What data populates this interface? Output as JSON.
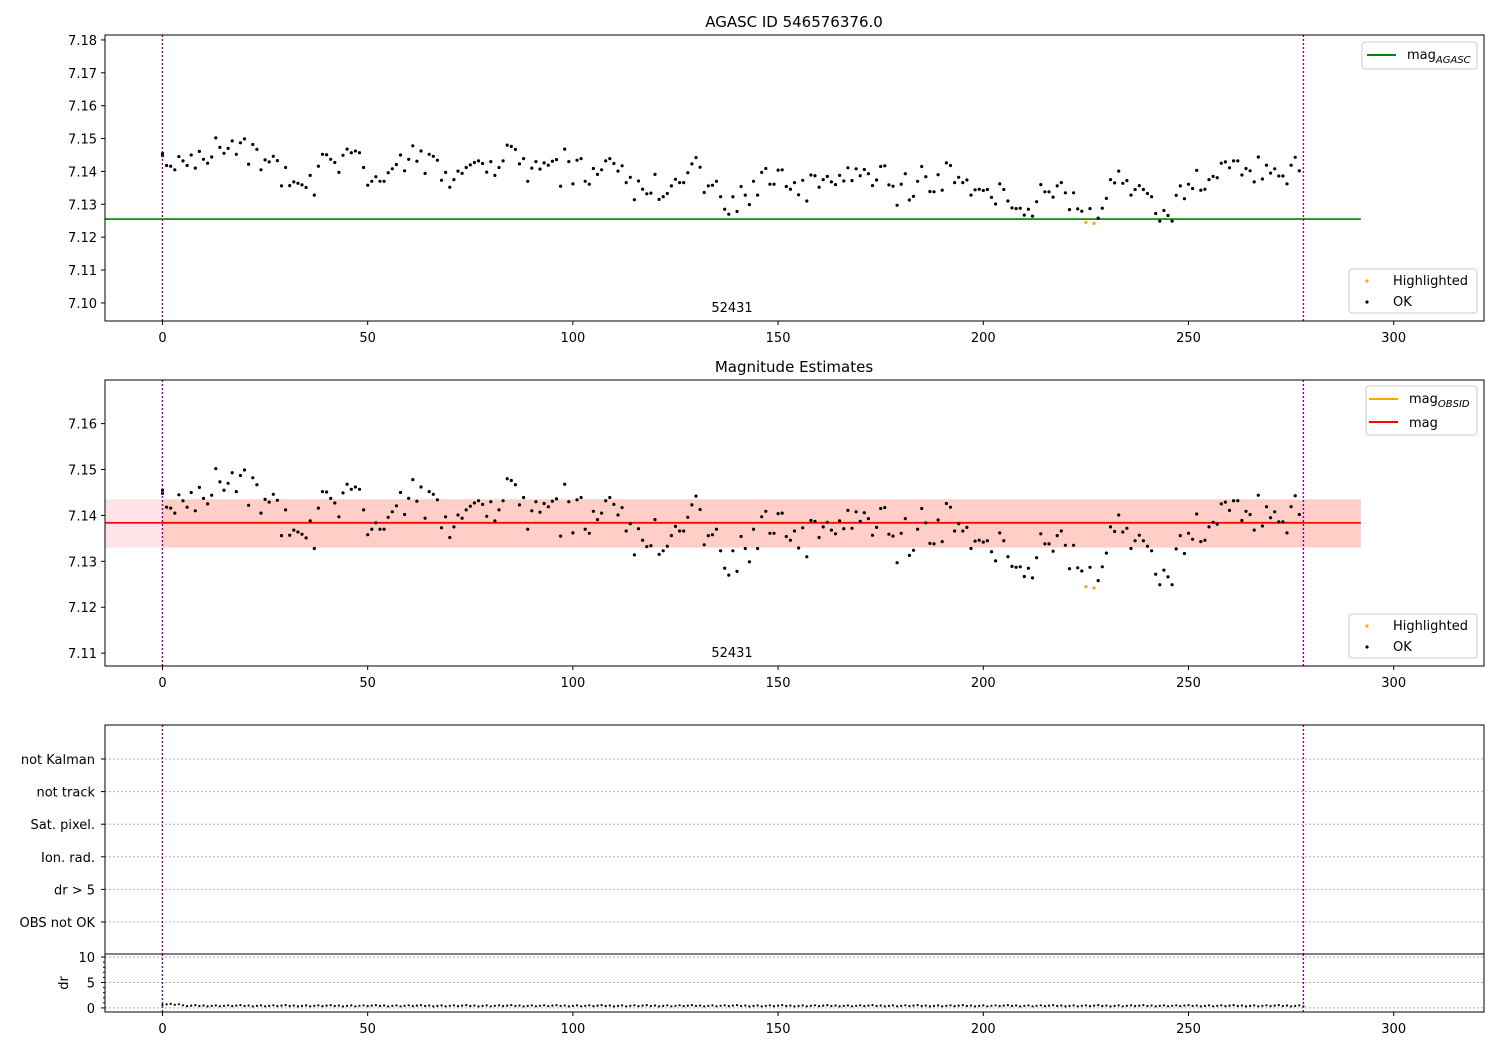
{
  "chart_data": [
    {
      "id": "p1",
      "type": "scatter",
      "title": "AGASC ID 546576376.0",
      "annotation": "52431",
      "xlim": [
        -14,
        322
      ],
      "ylim": [
        7.0945,
        7.1815
      ],
      "xticks": [
        0,
        50,
        100,
        150,
        200,
        250,
        300
      ],
      "yticks": [
        7.1,
        7.11,
        7.12,
        7.13,
        7.14,
        7.15,
        7.16,
        7.17,
        7.18
      ],
      "ytick_decimals": 2,
      "vlines": [
        0,
        278
      ],
      "hlines": [
        {
          "y": 7.1255,
          "x0": -14,
          "x1": 292,
          "color": "#008000"
        }
      ],
      "legend_lines": [
        {
          "label": "mag",
          "sub": "AGASC",
          "color": "#008000"
        }
      ],
      "legend_points": [
        {
          "label": "Highlighted",
          "color": "#ffa500"
        },
        {
          "label": "OK",
          "color": "#000000"
        }
      ],
      "highlighted": [
        [
          225,
          7.1245
        ],
        [
          227,
          7.1242
        ]
      ]
    },
    {
      "id": "p2",
      "type": "scatter",
      "title": "Magnitude Estimates",
      "annotation": "52431",
      "xlim": [
        -14,
        322
      ],
      "ylim": [
        7.1072,
        7.1695
      ],
      "xticks": [
        0,
        50,
        100,
        150,
        200,
        250,
        300
      ],
      "yticks": [
        7.11,
        7.12,
        7.13,
        7.14,
        7.15,
        7.16
      ],
      "ytick_decimals": 2,
      "vlines": [
        0,
        278
      ],
      "bands": [
        {
          "y0": 7.133,
          "y1": 7.1435,
          "x0": -14,
          "x1": 292,
          "color": "#ffc0cb",
          "opacity": 0.45
        },
        {
          "y0": 7.133,
          "y1": 7.1435,
          "x0": 0,
          "x1": 292,
          "color": "#ffa07a",
          "opacity": 0.3
        }
      ],
      "hlines": [
        {
          "y": 7.1384,
          "x0": 0,
          "x1": 278,
          "color": "#ffa500",
          "width": 2.2
        },
        {
          "y": 7.1384,
          "x0": -14,
          "x1": 292,
          "color": "#ff0000",
          "width": 1.6
        }
      ],
      "legend_lines": [
        {
          "label": "mag",
          "sub": "OBSID",
          "color": "#ffa500"
        },
        {
          "label": "mag",
          "sub": "",
          "color": "#ff0000"
        }
      ],
      "legend_points": [
        {
          "label": "Highlighted",
          "color": "#ffa500"
        },
        {
          "label": "OK",
          "color": "#000000"
        }
      ],
      "highlighted": [
        [
          225,
          7.1245
        ],
        [
          227,
          7.1242
        ]
      ]
    },
    {
      "id": "p3",
      "type": "scatter",
      "flags": [
        "not Kalman",
        "not track",
        "Sat. pixel.",
        "Ion. rad.",
        "dr > 5",
        "OBS not OK"
      ],
      "vlines": [
        0,
        278
      ]
    },
    {
      "id": "p4",
      "type": "scatter",
      "ylabel": "dr",
      "xlim": [
        -14,
        322
      ],
      "ylim": [
        -0.8,
        10.6
      ],
      "xticks": [
        0,
        50,
        100,
        150,
        200,
        250,
        300
      ],
      "yticks": [
        0,
        5,
        10
      ],
      "ytick_decimals": 0,
      "vlines": [
        0,
        278
      ],
      "dr_values": {
        "start": 0,
        "end": 278,
        "baseline": 0.3
      }
    }
  ],
  "series_ok": [
    [
      0,
      7.1455
    ],
    [
      0,
      7.1448
    ],
    [
      1,
      7.1418
    ],
    [
      2,
      7.1416
    ],
    [
      3,
      7.1405
    ],
    [
      4,
      7.1445
    ],
    [
      5,
      7.1432
    ],
    [
      6,
      7.1418
    ],
    [
      7,
      7.145
    ],
    [
      8,
      7.141
    ],
    [
      9,
      7.1461
    ],
    [
      10,
      7.1437
    ],
    [
      11,
      7.1425
    ],
    [
      12,
      7.1444
    ],
    [
      13,
      7.1502
    ],
    [
      14,
      7.1473
    ],
    [
      15,
      7.1455
    ],
    [
      16,
      7.147
    ],
    [
      17,
      7.1493
    ],
    [
      18,
      7.1452
    ],
    [
      19,
      7.1487
    ],
    [
      20,
      7.1499
    ],
    [
      21,
      7.1422
    ],
    [
      22,
      7.1482
    ],
    [
      23,
      7.1467
    ],
    [
      24,
      7.1405
    ],
    [
      25,
      7.1435
    ],
    [
      26,
      7.1429
    ],
    [
      27,
      7.1446
    ],
    [
      28,
      7.1433
    ],
    [
      29,
      7.1356
    ],
    [
      30,
      7.1412
    ],
    [
      31,
      7.1357
    ],
    [
      32,
      7.1368
    ],
    [
      33,
      7.1364
    ],
    [
      34,
      7.1359
    ],
    [
      35,
      7.1351
    ],
    [
      36,
      7.1388
    ],
    [
      37,
      7.1328
    ],
    [
      38,
      7.1416
    ],
    [
      39,
      7.1452
    ],
    [
      40,
      7.1451
    ],
    [
      41,
      7.1437
    ],
    [
      42,
      7.1427
    ],
    [
      43,
      7.1397
    ],
    [
      44,
      7.1449
    ],
    [
      45,
      7.1468
    ],
    [
      46,
      7.1457
    ],
    [
      47,
      7.1462
    ],
    [
      48,
      7.1457
    ],
    [
      49,
      7.1412
    ],
    [
      50,
      7.1358
    ],
    [
      51,
      7.137
    ],
    [
      52,
      7.1384
    ],
    [
      53,
      7.137
    ],
    [
      54,
      7.137
    ],
    [
      55,
      7.1396
    ],
    [
      56,
      7.1408
    ],
    [
      57,
      7.1421
    ],
    [
      58,
      7.145
    ],
    [
      59,
      7.1402
    ],
    [
      60,
      7.1437
    ],
    [
      61,
      7.1478
    ],
    [
      62,
      7.1431
    ],
    [
      63,
      7.1462
    ],
    [
      64,
      7.1394
    ],
    [
      65,
      7.1452
    ],
    [
      66,
      7.1446
    ],
    [
      67,
      7.1434
    ],
    [
      68,
      7.1373
    ],
    [
      69,
      7.1397
    ],
    [
      70,
      7.1352
    ],
    [
      71,
      7.1375
    ],
    [
      72,
      7.1401
    ],
    [
      73,
      7.1394
    ],
    [
      74,
      7.1412
    ],
    [
      75,
      7.142
    ],
    [
      76,
      7.1427
    ],
    [
      77,
      7.1432
    ],
    [
      78,
      7.1424
    ],
    [
      79,
      7.1398
    ],
    [
      80,
      7.143
    ],
    [
      81,
      7.1388
    ],
    [
      82,
      7.1412
    ],
    [
      83,
      7.1432
    ],
    [
      84,
      7.148
    ],
    [
      85,
      7.1476
    ],
    [
      86,
      7.1467
    ],
    [
      87,
      7.1423
    ],
    [
      88,
      7.1439
    ],
    [
      89,
      7.137
    ],
    [
      90,
      7.141
    ],
    [
      91,
      7.143
    ],
    [
      92,
      7.1407
    ],
    [
      93,
      7.1426
    ],
    [
      94,
      7.1419
    ],
    [
      95,
      7.1431
    ],
    [
      96,
      7.1436
    ],
    [
      97,
      7.1355
    ],
    [
      98,
      7.1468
    ],
    [
      99,
      7.143
    ],
    [
      100,
      7.1362
    ],
    [
      101,
      7.1434
    ],
    [
      102,
      7.1439
    ],
    [
      103,
      7.137
    ],
    [
      104,
      7.1361
    ],
    [
      105,
      7.1409
    ],
    [
      106,
      7.1391
    ],
    [
      107,
      7.1405
    ],
    [
      108,
      7.1432
    ],
    [
      109,
      7.1439
    ],
    [
      110,
      7.1424
    ],
    [
      111,
      7.1401
    ],
    [
      112,
      7.1417
    ],
    [
      113,
      7.1366
    ],
    [
      114,
      7.1382
    ],
    [
      115,
      7.1314
    ],
    [
      116,
      7.1371
    ],
    [
      117,
      7.1346
    ],
    [
      118,
      7.1332
    ],
    [
      119,
      7.1334
    ],
    [
      120,
      7.1391
    ],
    [
      121,
      7.1315
    ],
    [
      122,
      7.1323
    ],
    [
      123,
      7.1333
    ],
    [
      124,
      7.1356
    ],
    [
      125,
      7.1376
    ],
    [
      126,
      7.1366
    ],
    [
      127,
      7.1366
    ],
    [
      128,
      7.1396
    ],
    [
      129,
      7.1423
    ],
    [
      130,
      7.1442
    ],
    [
      131,
      7.1413
    ],
    [
      132,
      7.1336
    ],
    [
      133,
      7.1356
    ],
    [
      134,
      7.1358
    ],
    [
      135,
      7.137
    ],
    [
      136,
      7.1323
    ],
    [
      137,
      7.1285
    ],
    [
      138,
      7.127
    ],
    [
      139,
      7.1323
    ],
    [
      140,
      7.1278
    ],
    [
      141,
      7.1354
    ],
    [
      142,
      7.1328
    ],
    [
      143,
      7.1299
    ],
    [
      144,
      7.137
    ],
    [
      145,
      7.1328
    ],
    [
      146,
      7.1397
    ],
    [
      147,
      7.1409
    ],
    [
      148,
      7.1361
    ],
    [
      149,
      7.1361
    ],
    [
      150,
      7.1404
    ],
    [
      151,
      7.1405
    ],
    [
      152,
      7.1354
    ],
    [
      153,
      7.1346
    ],
    [
      154,
      7.1366
    ],
    [
      155,
      7.1329
    ],
    [
      156,
      7.1373
    ],
    [
      157,
      7.131
    ],
    [
      158,
      7.1389
    ],
    [
      159,
      7.1387
    ],
    [
      160,
      7.1352
    ],
    [
      161,
      7.1375
    ],
    [
      162,
      7.1385
    ],
    [
      163,
      7.1368
    ],
    [
      164,
      7.136
    ],
    [
      165,
      7.1388
    ],
    [
      166,
      7.1371
    ],
    [
      167,
      7.1411
    ],
    [
      168,
      7.1372
    ],
    [
      169,
      7.1408
    ],
    [
      170,
      7.1387
    ],
    [
      171,
      7.1406
    ],
    [
      172,
      7.1393
    ],
    [
      173,
      7.1357
    ],
    [
      174,
      7.1374
    ],
    [
      175,
      7.1415
    ],
    [
      176,
      7.1417
    ],
    [
      177,
      7.1359
    ],
    [
      178,
      7.1355
    ],
    [
      179,
      7.1297
    ],
    [
      180,
      7.1361
    ],
    [
      181,
      7.1393
    ],
    [
      182,
      7.1313
    ],
    [
      183,
      7.1324
    ],
    [
      184,
      7.137
    ],
    [
      185,
      7.1415
    ],
    [
      186,
      7.1384
    ],
    [
      187,
      7.1339
    ],
    [
      188,
      7.1338
    ],
    [
      189,
      7.139
    ],
    [
      190,
      7.1343
    ],
    [
      191,
      7.1426
    ],
    [
      192,
      7.1418
    ],
    [
      193,
      7.1366
    ],
    [
      194,
      7.1382
    ],
    [
      195,
      7.1366
    ],
    [
      196,
      7.1374
    ],
    [
      197,
      7.1328
    ],
    [
      198,
      7.1344
    ],
    [
      199,
      7.1346
    ],
    [
      200,
      7.1342
    ],
    [
      201,
      7.1345
    ],
    [
      202,
      7.1321
    ],
    [
      203,
      7.1301
    ],
    [
      204,
      7.1362
    ],
    [
      205,
      7.1345
    ],
    [
      206,
      7.131
    ],
    [
      207,
      7.1289
    ],
    [
      208,
      7.1287
    ],
    [
      209,
      7.1288
    ],
    [
      210,
      7.1267
    ],
    [
      211,
      7.1285
    ],
    [
      212,
      7.1264
    ],
    [
      213,
      7.1308
    ],
    [
      214,
      7.136
    ],
    [
      215,
      7.1338
    ],
    [
      216,
      7.1338
    ],
    [
      217,
      7.1322
    ],
    [
      218,
      7.1356
    ],
    [
      219,
      7.1366
    ],
    [
      220,
      7.1335
    ],
    [
      221,
      7.1284
    ],
    [
      222,
      7.1335
    ],
    [
      223,
      7.1286
    ],
    [
      224,
      7.1279
    ],
    [
      226,
      7.1287
    ],
    [
      228,
      7.1258
    ],
    [
      229,
      7.1288
    ],
    [
      230,
      7.1318
    ],
    [
      231,
      7.1375
    ],
    [
      232,
      7.1365
    ],
    [
      233,
      7.1401
    ],
    [
      234,
      7.1364
    ],
    [
      235,
      7.1372
    ],
    [
      236,
      7.1328
    ],
    [
      237,
      7.1345
    ],
    [
      238,
      7.1357
    ],
    [
      239,
      7.1345
    ],
    [
      240,
      7.1333
    ],
    [
      241,
      7.1323
    ],
    [
      242,
      7.1272
    ],
    [
      243,
      7.1249
    ],
    [
      244,
      7.1281
    ],
    [
      245,
      7.1266
    ],
    [
      246,
      7.1249
    ],
    [
      247,
      7.1327
    ],
    [
      248,
      7.1356
    ],
    [
      249,
      7.1317
    ],
    [
      250,
      7.1361
    ],
    [
      251,
      7.1348
    ],
    [
      252,
      7.1403
    ],
    [
      253,
      7.1343
    ],
    [
      254,
      7.1346
    ],
    [
      255,
      7.1375
    ],
    [
      256,
      7.1385
    ],
    [
      257,
      7.1381
    ],
    [
      258,
      7.1425
    ],
    [
      259,
      7.1429
    ],
    [
      260,
      7.1411
    ],
    [
      261,
      7.1432
    ],
    [
      262,
      7.1432
    ],
    [
      263,
      7.1389
    ],
    [
      264,
      7.1409
    ],
    [
      265,
      7.1402
    ],
    [
      266,
      7.1368
    ],
    [
      267,
      7.1444
    ],
    [
      268,
      7.1377
    ],
    [
      269,
      7.1419
    ],
    [
      270,
      7.1395
    ],
    [
      271,
      7.1408
    ],
    [
      272,
      7.1386
    ],
    [
      273,
      7.1386
    ],
    [
      274,
      7.1362
    ],
    [
      275,
      7.1419
    ],
    [
      276,
      7.1443
    ],
    [
      277,
      7.1402
    ]
  ]
}
